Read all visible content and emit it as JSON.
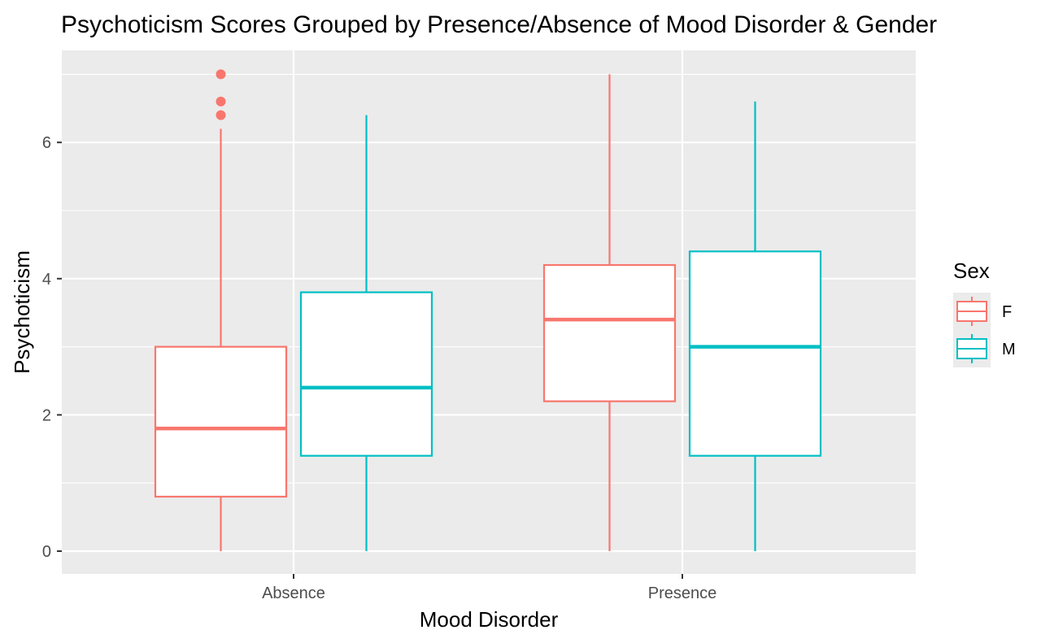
{
  "chart_data": {
    "type": "boxplot",
    "title": "Psychoticism Scores Grouped by Presence/Absence of Mood Disorder & Gender",
    "xlabel": "Mood Disorder",
    "ylabel": "Psychoticism",
    "ylim": [
      -0.35,
      7.2
    ],
    "yticks": [
      0,
      2,
      4,
      6
    ],
    "categories": [
      "Absence",
      "Presence"
    ],
    "grid": true,
    "legend": {
      "title": "Sex",
      "placement": "right",
      "entries": [
        "F",
        "M"
      ]
    },
    "colors": {
      "F": "#F8766D",
      "M": "#00BFC4",
      "panel": "#EBEBEB",
      "grid": "#FFFFFF",
      "tick_text": "#4D4D4D"
    },
    "series": [
      {
        "name": "F",
        "boxes": [
          {
            "category": "Absence",
            "min": 0,
            "q1": 0.8,
            "median": 1.8,
            "q3": 3.0,
            "max": 6.2,
            "outliers": [
              6.4,
              6.6,
              7.0
            ]
          },
          {
            "category": "Presence",
            "min": 0,
            "q1": 2.2,
            "median": 3.4,
            "q3": 4.2,
            "max": 7.0,
            "outliers": []
          }
        ]
      },
      {
        "name": "M",
        "boxes": [
          {
            "category": "Absence",
            "min": 0,
            "q1": 1.4,
            "median": 2.4,
            "q3": 3.8,
            "max": 6.4,
            "outliers": []
          },
          {
            "category": "Presence",
            "min": 0,
            "q1": 1.4,
            "median": 3.0,
            "q3": 4.4,
            "max": 6.6,
            "outliers": []
          }
        ]
      }
    ]
  }
}
